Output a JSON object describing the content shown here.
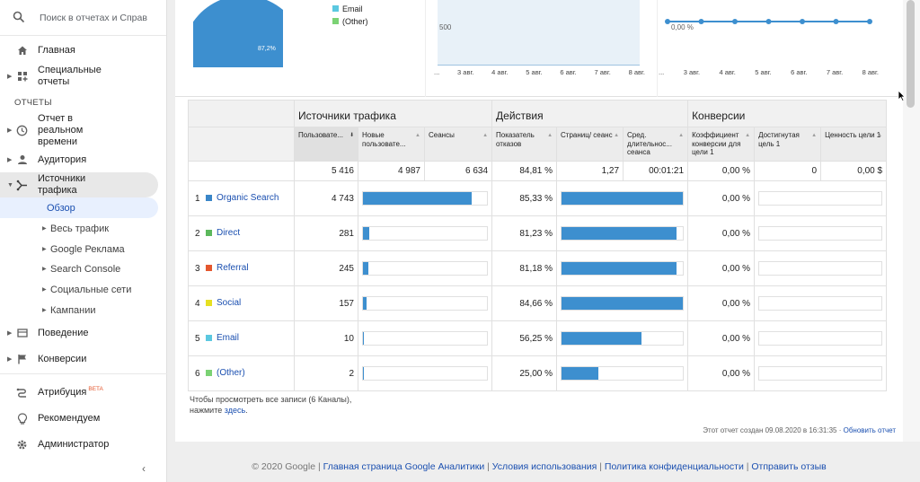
{
  "search": {
    "placeholder": "Поиск в отчетах и Справке"
  },
  "sidebar": {
    "home": "Главная",
    "custom": "Специальные отчеты",
    "section_reports": "ОТЧЕТЫ",
    "realtime": "Отчет в реальном времени",
    "audience": "Аудитория",
    "acquisition": "Источники трафика",
    "overview": "Обзор",
    "sub": [
      "Весь трафик",
      "Google Реклама",
      "Search Console",
      "Социальные сети",
      "Кампании"
    ],
    "behavior": "Поведение",
    "conversions": "Конверсии",
    "attribution": "Атрибуция",
    "attribution_badge": "BETA",
    "recommend": "Рекомендуем",
    "admin": "Администратор"
  },
  "top_charts": {
    "pie_label": "87,2%",
    "legend": [
      {
        "label": "Email",
        "color": "#5bc8e0"
      },
      {
        "label": "(Other)",
        "color": "#7bd274"
      }
    ],
    "area": {
      "y_tick": "500",
      "x_ticks": [
        "...",
        "3 авг.",
        "4 авг.",
        "5 авг.",
        "6 авг.",
        "7 авг.",
        "8 авг."
      ]
    },
    "line": {
      "y_label": "0,00 %",
      "x_ticks": [
        "...",
        "3 авг.",
        "4 авг.",
        "5 авг.",
        "6 авг.",
        "7 авг.",
        "8 авг."
      ],
      "points": 7
    }
  },
  "table": {
    "groups": [
      "Источники трафика",
      "Действия",
      "Конверсии"
    ],
    "columns": [
      "Пользовате...",
      "Новые пользовате...",
      "Сеансы",
      "Показатель отказов",
      "Страниц/ сеанс",
      "Сред. длительнос... сеанса",
      "Коэффициент конверсии для цели 1",
      "Достигнутая цель 1",
      "Ценность цели 1"
    ],
    "totals": [
      "5 416",
      "4 987",
      "6 634",
      "84,81 %",
      "1,27",
      "00:01:21",
      "0,00 %",
      "0",
      "0,00 $"
    ],
    "rows": [
      {
        "idx": "1",
        "channel": "Organic Search",
        "color": "#3a86c8",
        "users": "4 743",
        "new_users_frac": 0.88,
        "bounce": "85,33 %",
        "pages_frac": 1.0,
        "conv": "0,00 %"
      },
      {
        "idx": "2",
        "channel": "Direct",
        "color": "#5cb85c",
        "users": "281",
        "new_users_frac": 0.05,
        "bounce": "81,23 %",
        "pages_frac": 0.95,
        "conv": "0,00 %"
      },
      {
        "idx": "3",
        "channel": "Referral",
        "color": "#e4572e",
        "users": "245",
        "new_users_frac": 0.04,
        "bounce": "81,18 %",
        "pages_frac": 0.95,
        "conv": "0,00 %"
      },
      {
        "idx": "4",
        "channel": "Social",
        "color": "#e6e022",
        "users": "157",
        "new_users_frac": 0.03,
        "bounce": "84,66 %",
        "pages_frac": 1.0,
        "conv": "0,00 %"
      },
      {
        "idx": "5",
        "channel": "Email",
        "color": "#5bc8e0",
        "users": "10",
        "new_users_frac": 0.01,
        "bounce": "56,25 %",
        "pages_frac": 0.66,
        "conv": "0,00 %"
      },
      {
        "idx": "6",
        "channel": "(Other)",
        "color": "#7bd274",
        "users": "2",
        "new_users_frac": 0.005,
        "bounce": "25,00 %",
        "pages_frac": 0.3,
        "conv": "0,00 %"
      }
    ]
  },
  "note": {
    "text": "Чтобы просмотреть все записи (6 Каналы),",
    "text2": "нажмите",
    "link": "здесь",
    "dot": "."
  },
  "created": {
    "text": "Этот отчет создан 09.08.2020 в 16:31:35 · ",
    "link": "Обновить отчет"
  },
  "footer": {
    "copyright": "© 2020 Google",
    "links": [
      "Главная страница Google Аналитики",
      "Условия использования",
      "Политика конфиденциальности",
      "Отправить отзыв"
    ]
  }
}
